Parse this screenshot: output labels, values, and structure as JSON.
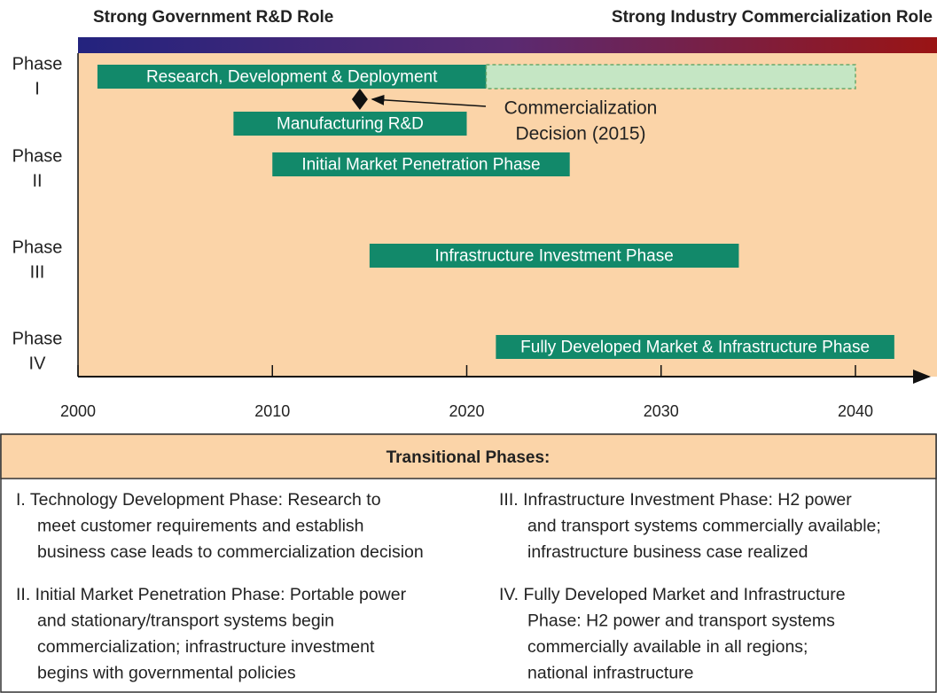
{
  "chart_data": {
    "type": "gantt",
    "left_heading": "Strong Government R&D Role",
    "right_heading": "Strong Industry Commercialization Role",
    "xlim": [
      2000,
      2044
    ],
    "xticks": [
      2000,
      2010,
      2020,
      2030,
      2040
    ],
    "rows": [
      [
        "Phase",
        "I"
      ],
      [
        "Phase",
        "II"
      ],
      [
        "Phase",
        "III"
      ],
      [
        "Phase",
        "IV"
      ]
    ],
    "bars": [
      {
        "label": "Research, Development  & Deployment",
        "start": 2001,
        "end": 2021,
        "color": "#12896a",
        "row": 0
      },
      {
        "start": 2021,
        "end": 2040,
        "color": "#c5e6c4",
        "dashed": true,
        "row": 0
      },
      {
        "label": "Manufacturing R&D",
        "start": 2008,
        "end": 2020,
        "color": "#12896a",
        "row": 1
      },
      {
        "label": "Initial Market Penetration Phase",
        "start": 2010,
        "end": 2025.3,
        "color": "#12896a",
        "row": 2
      },
      {
        "label": "Infrastructure Investment Phase",
        "start": 2015,
        "end": 2034,
        "color": "#12896a",
        "row": 3
      },
      {
        "label": "Fully Developed Market & Infrastructure Phase",
        "start": 2021.5,
        "end": 2042,
        "color": "#12896a",
        "row": 4
      }
    ],
    "marker": {
      "x": 2014.5,
      "annotation": [
        "Commercialization",
        "Decision (2015)"
      ]
    }
  },
  "notes": {
    "title": "Transitional Phases:",
    "items": [
      {
        "lines": [
          "I.  Technology Development Phase:  Research to",
          "meet customer requirements and establish",
          "business case leads to commercialization decision"
        ]
      },
      {
        "lines": [
          "II. Initial Market Penetration Phase:  Portable power",
          "and stationary/transport systems begin",
          "commercialization; infrastructure investment",
          "begins with governmental policies"
        ]
      },
      {
        "lines": [
          "III.  Infrastructure Investment Phase:  H2 power",
          "and transport systems commercially available;",
          "infrastructure business case realized"
        ]
      },
      {
        "lines": [
          "IV.  Fully Developed Market and Infrastructure",
          "Phase:  H2 power and transport systems",
          "commercially available in all regions;",
          "national infrastructure"
        ]
      }
    ]
  }
}
